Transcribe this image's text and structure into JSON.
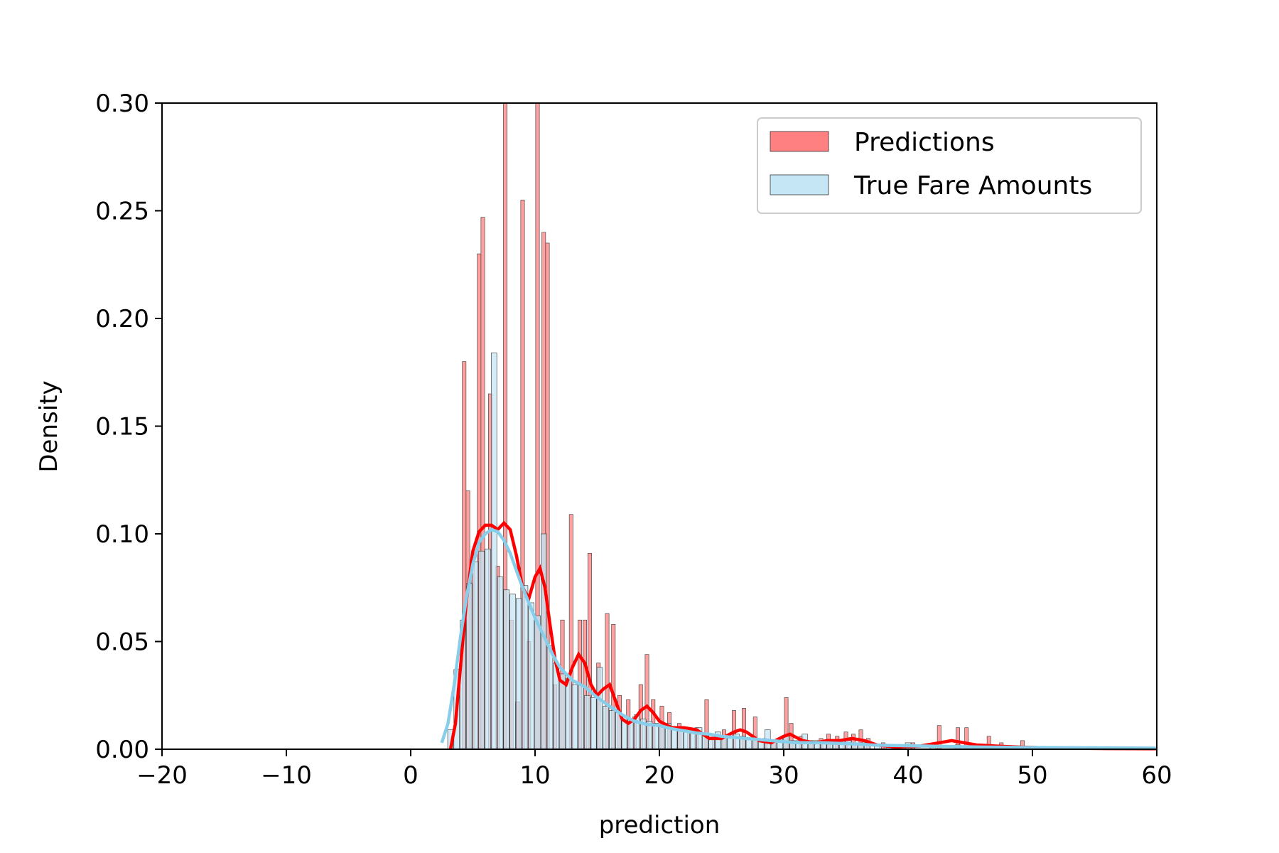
{
  "chart_data": {
    "type": "histogram",
    "xlabel": "prediction",
    "ylabel": "Density",
    "xlim": [
      -20,
      60
    ],
    "ylim": [
      0,
      0.3
    ],
    "xticks": [
      -20,
      -10,
      0,
      10,
      20,
      30,
      40,
      50,
      60
    ],
    "yticks": [
      0.0,
      0.05,
      0.1,
      0.15,
      0.2,
      0.25,
      0.3
    ],
    "xtick_labels": [
      "−20",
      "−10",
      "0",
      "10",
      "20",
      "30",
      "40",
      "50",
      "60"
    ],
    "ytick_labels": [
      "0.00",
      "0.05",
      "0.10",
      "0.15",
      "0.20",
      "0.25",
      "0.30"
    ],
    "legend_position": "top-right",
    "grid": false,
    "series": [
      {
        "name": "Predictions",
        "color": "#ff8080",
        "edge_color": "#333333",
        "bin_width": 0.3,
        "bars": [
          [
            4.3,
            0.18
          ],
          [
            4.6,
            0.12
          ],
          [
            5.0,
            0.09
          ],
          [
            5.5,
            0.23
          ],
          [
            5.8,
            0.247
          ],
          [
            6.4,
            0.165
          ],
          [
            7.0,
            0.085
          ],
          [
            7.6,
            0.3
          ],
          [
            8.1,
            0.06
          ],
          [
            8.6,
            0.022
          ],
          [
            9.0,
            0.255
          ],
          [
            9.5,
            0.05
          ],
          [
            10.2,
            0.3
          ],
          [
            10.7,
            0.24
          ],
          [
            11.0,
            0.235
          ],
          [
            11.6,
            0.03
          ],
          [
            12.2,
            0.06
          ],
          [
            12.9,
            0.109
          ],
          [
            13.6,
            0.06
          ],
          [
            14.0,
            0.06
          ],
          [
            14.4,
            0.091
          ],
          [
            15.1,
            0.04
          ],
          [
            15.8,
            0.063
          ],
          [
            16.3,
            0.058
          ],
          [
            16.8,
            0.025
          ],
          [
            17.5,
            0.023
          ],
          [
            18.0,
            0.015
          ],
          [
            18.5,
            0.03
          ],
          [
            19.0,
            0.044
          ],
          [
            19.5,
            0.023
          ],
          [
            20.2,
            0.02
          ],
          [
            20.8,
            0.017
          ],
          [
            21.6,
            0.012
          ],
          [
            22.4,
            0.008
          ],
          [
            23.0,
            0.01
          ],
          [
            23.8,
            0.023
          ],
          [
            24.4,
            0.006
          ],
          [
            25.2,
            0.009
          ],
          [
            26.0,
            0.018
          ],
          [
            26.8,
            0.019
          ],
          [
            27.7,
            0.015
          ],
          [
            28.5,
            0.005
          ],
          [
            29.2,
            0.004
          ],
          [
            30.2,
            0.024
          ],
          [
            30.6,
            0.012
          ],
          [
            31.4,
            0.006
          ],
          [
            32.2,
            0.004
          ],
          [
            33.0,
            0.005
          ],
          [
            33.6,
            0.007
          ],
          [
            34.3,
            0.006
          ],
          [
            35.0,
            0.008
          ],
          [
            35.6,
            0.007
          ],
          [
            36.2,
            0.009
          ],
          [
            36.8,
            0.005
          ],
          [
            38.0,
            0.003
          ],
          [
            39.0,
            0.002
          ],
          [
            40.4,
            0.003
          ],
          [
            42.5,
            0.011
          ],
          [
            44.0,
            0.01
          ],
          [
            44.7,
            0.01
          ],
          [
            46.5,
            0.006
          ],
          [
            47.5,
            0.003
          ],
          [
            49.2,
            0.004
          ]
        ],
        "kde": [
          [
            3.2,
            0.0
          ],
          [
            3.6,
            0.012
          ],
          [
            4.0,
            0.038
          ],
          [
            4.5,
            0.07
          ],
          [
            5.0,
            0.092
          ],
          [
            5.5,
            0.101
          ],
          [
            6.0,
            0.104
          ],
          [
            6.5,
            0.104
          ],
          [
            7.0,
            0.102
          ],
          [
            7.5,
            0.105
          ],
          [
            8.0,
            0.102
          ],
          [
            8.5,
            0.09
          ],
          [
            9.0,
            0.075
          ],
          [
            9.5,
            0.07
          ],
          [
            10.0,
            0.08
          ],
          [
            10.4,
            0.084
          ],
          [
            10.8,
            0.075
          ],
          [
            11.2,
            0.058
          ],
          [
            11.6,
            0.042
          ],
          [
            12.0,
            0.032
          ],
          [
            12.5,
            0.03
          ],
          [
            13.0,
            0.038
          ],
          [
            13.5,
            0.044
          ],
          [
            14.0,
            0.04
          ],
          [
            14.5,
            0.03
          ],
          [
            15.0,
            0.025
          ],
          [
            15.5,
            0.028
          ],
          [
            16.0,
            0.03
          ],
          [
            16.5,
            0.022
          ],
          [
            17.0,
            0.014
          ],
          [
            17.5,
            0.012
          ],
          [
            18.0,
            0.014
          ],
          [
            18.5,
            0.018
          ],
          [
            19.0,
            0.02
          ],
          [
            19.5,
            0.017
          ],
          [
            20.0,
            0.013
          ],
          [
            21.0,
            0.01
          ],
          [
            22.0,
            0.01
          ],
          [
            23.0,
            0.009
          ],
          [
            24.0,
            0.005
          ],
          [
            25.0,
            0.005
          ],
          [
            26.0,
            0.008
          ],
          [
            26.5,
            0.009
          ],
          [
            27.0,
            0.008
          ],
          [
            28.0,
            0.004
          ],
          [
            29.0,
            0.003
          ],
          [
            30.0,
            0.006
          ],
          [
            30.5,
            0.007
          ],
          [
            31.5,
            0.004
          ],
          [
            32.5,
            0.003
          ],
          [
            33.5,
            0.004
          ],
          [
            34.5,
            0.004
          ],
          [
            35.5,
            0.005
          ],
          [
            36.5,
            0.004
          ],
          [
            37.5,
            0.002
          ],
          [
            39.0,
            0.001
          ],
          [
            41.0,
            0.0015
          ],
          [
            42.5,
            0.003
          ],
          [
            43.5,
            0.004
          ],
          [
            44.5,
            0.003
          ],
          [
            45.5,
            0.002
          ],
          [
            47.0,
            0.0015
          ],
          [
            49.0,
            0.001
          ],
          [
            52.0,
            0.0005
          ],
          [
            56.0,
            0.0003
          ],
          [
            60.0,
            0.0002
          ]
        ]
      },
      {
        "name": "True Fare Amounts",
        "color": "#c5e6f4",
        "edge_color": "#333333",
        "bin_width": 0.45,
        "bars": [
          [
            3.2,
            0.009
          ],
          [
            3.7,
            0.037
          ],
          [
            4.2,
            0.06
          ],
          [
            4.7,
            0.077
          ],
          [
            5.2,
            0.087
          ],
          [
            5.7,
            0.092
          ],
          [
            6.2,
            0.093
          ],
          [
            6.7,
            0.184
          ],
          [
            7.2,
            0.08
          ],
          [
            7.7,
            0.074
          ],
          [
            8.2,
            0.072
          ],
          [
            8.7,
            0.07
          ],
          [
            9.2,
            0.076
          ],
          [
            9.7,
            0.068
          ],
          [
            10.2,
            0.062
          ],
          [
            10.7,
            0.1
          ],
          [
            11.2,
            0.048
          ],
          [
            11.7,
            0.04
          ],
          [
            12.2,
            0.035
          ],
          [
            12.7,
            0.033
          ],
          [
            13.2,
            0.03
          ],
          [
            13.7,
            0.03
          ],
          [
            14.2,
            0.025
          ],
          [
            14.7,
            0.024
          ],
          [
            15.2,
            0.038
          ],
          [
            15.7,
            0.02
          ],
          [
            16.2,
            0.018
          ],
          [
            16.7,
            0.017
          ],
          [
            17.2,
            0.015
          ],
          [
            17.7,
            0.014
          ],
          [
            18.2,
            0.016
          ],
          [
            18.7,
            0.014
          ],
          [
            19.2,
            0.013
          ],
          [
            19.7,
            0.012
          ],
          [
            20.2,
            0.011
          ],
          [
            20.7,
            0.012
          ],
          [
            21.2,
            0.01
          ],
          [
            21.7,
            0.009
          ],
          [
            22.2,
            0.008
          ],
          [
            22.7,
            0.008
          ],
          [
            23.2,
            0.01
          ],
          [
            23.7,
            0.007
          ],
          [
            24.2,
            0.007
          ],
          [
            24.7,
            0.008
          ],
          [
            25.2,
            0.006
          ],
          [
            25.7,
            0.006
          ],
          [
            26.2,
            0.007
          ],
          [
            26.7,
            0.006
          ],
          [
            27.2,
            0.005
          ],
          [
            27.7,
            0.005
          ],
          [
            28.2,
            0.005
          ],
          [
            28.7,
            0.009
          ],
          [
            29.2,
            0.004
          ],
          [
            29.7,
            0.005
          ],
          [
            30.2,
            0.006
          ],
          [
            30.7,
            0.004
          ],
          [
            31.2,
            0.004
          ],
          [
            31.7,
            0.007
          ],
          [
            32.2,
            0.004
          ],
          [
            32.7,
            0.004
          ],
          [
            33.2,
            0.004
          ],
          [
            33.7,
            0.004
          ],
          [
            34.2,
            0.003
          ],
          [
            34.7,
            0.004
          ],
          [
            35.2,
            0.004
          ],
          [
            35.7,
            0.003
          ],
          [
            36.2,
            0.003
          ],
          [
            36.7,
            0.003
          ],
          [
            37.5,
            0.002
          ],
          [
            38.5,
            0.002
          ],
          [
            40.0,
            0.003
          ],
          [
            42.0,
            0.002
          ],
          [
            44.0,
            0.002
          ],
          [
            46.0,
            0.001
          ],
          [
            48.0,
            0.001
          ],
          [
            50.0,
            0.001
          ],
          [
            52.0,
            0.001
          ],
          [
            54.0,
            0.001
          ],
          [
            56.0,
            0.001
          ],
          [
            58.0,
            0.001
          ],
          [
            59.5,
            0.001
          ]
        ],
        "kde": [
          [
            2.5,
            0.003
          ],
          [
            3.0,
            0.012
          ],
          [
            3.5,
            0.03
          ],
          [
            4.0,
            0.052
          ],
          [
            4.5,
            0.071
          ],
          [
            5.0,
            0.086
          ],
          [
            5.5,
            0.096
          ],
          [
            6.0,
            0.1
          ],
          [
            6.5,
            0.102
          ],
          [
            7.0,
            0.101
          ],
          [
            7.5,
            0.097
          ],
          [
            8.0,
            0.091
          ],
          [
            8.5,
            0.083
          ],
          [
            9.0,
            0.075
          ],
          [
            9.5,
            0.068
          ],
          [
            10.0,
            0.061
          ],
          [
            10.5,
            0.055
          ],
          [
            11.0,
            0.049
          ],
          [
            11.5,
            0.043
          ],
          [
            12.0,
            0.038
          ],
          [
            13.0,
            0.032
          ],
          [
            14.0,
            0.029
          ],
          [
            15.0,
            0.024
          ],
          [
            16.0,
            0.02
          ],
          [
            17.0,
            0.016
          ],
          [
            18.0,
            0.013
          ],
          [
            19.0,
            0.0115
          ],
          [
            20.0,
            0.011
          ],
          [
            21.0,
            0.0095
          ],
          [
            22.0,
            0.0085
          ],
          [
            23.0,
            0.0075
          ],
          [
            24.0,
            0.007
          ],
          [
            25.0,
            0.006
          ],
          [
            26.0,
            0.0055
          ],
          [
            27.0,
            0.005
          ],
          [
            28.0,
            0.0045
          ],
          [
            29.0,
            0.004
          ],
          [
            30.0,
            0.0035
          ],
          [
            31.0,
            0.003
          ],
          [
            32.0,
            0.003
          ],
          [
            33.0,
            0.003
          ],
          [
            34.0,
            0.0028
          ],
          [
            35.0,
            0.0026
          ],
          [
            36.0,
            0.0024
          ],
          [
            37.0,
            0.002
          ],
          [
            38.0,
            0.0018
          ],
          [
            40.0,
            0.0016
          ],
          [
            42.0,
            0.0014
          ],
          [
            44.0,
            0.0012
          ],
          [
            46.0,
            0.001
          ],
          [
            48.0,
            0.0009
          ],
          [
            50.0,
            0.0008
          ],
          [
            53.0,
            0.0007
          ],
          [
            56.0,
            0.0006
          ],
          [
            60.0,
            0.0005
          ]
        ],
        "kde_color": "#87ceeb"
      }
    ],
    "predictions_kde_color": "#ff0000"
  }
}
